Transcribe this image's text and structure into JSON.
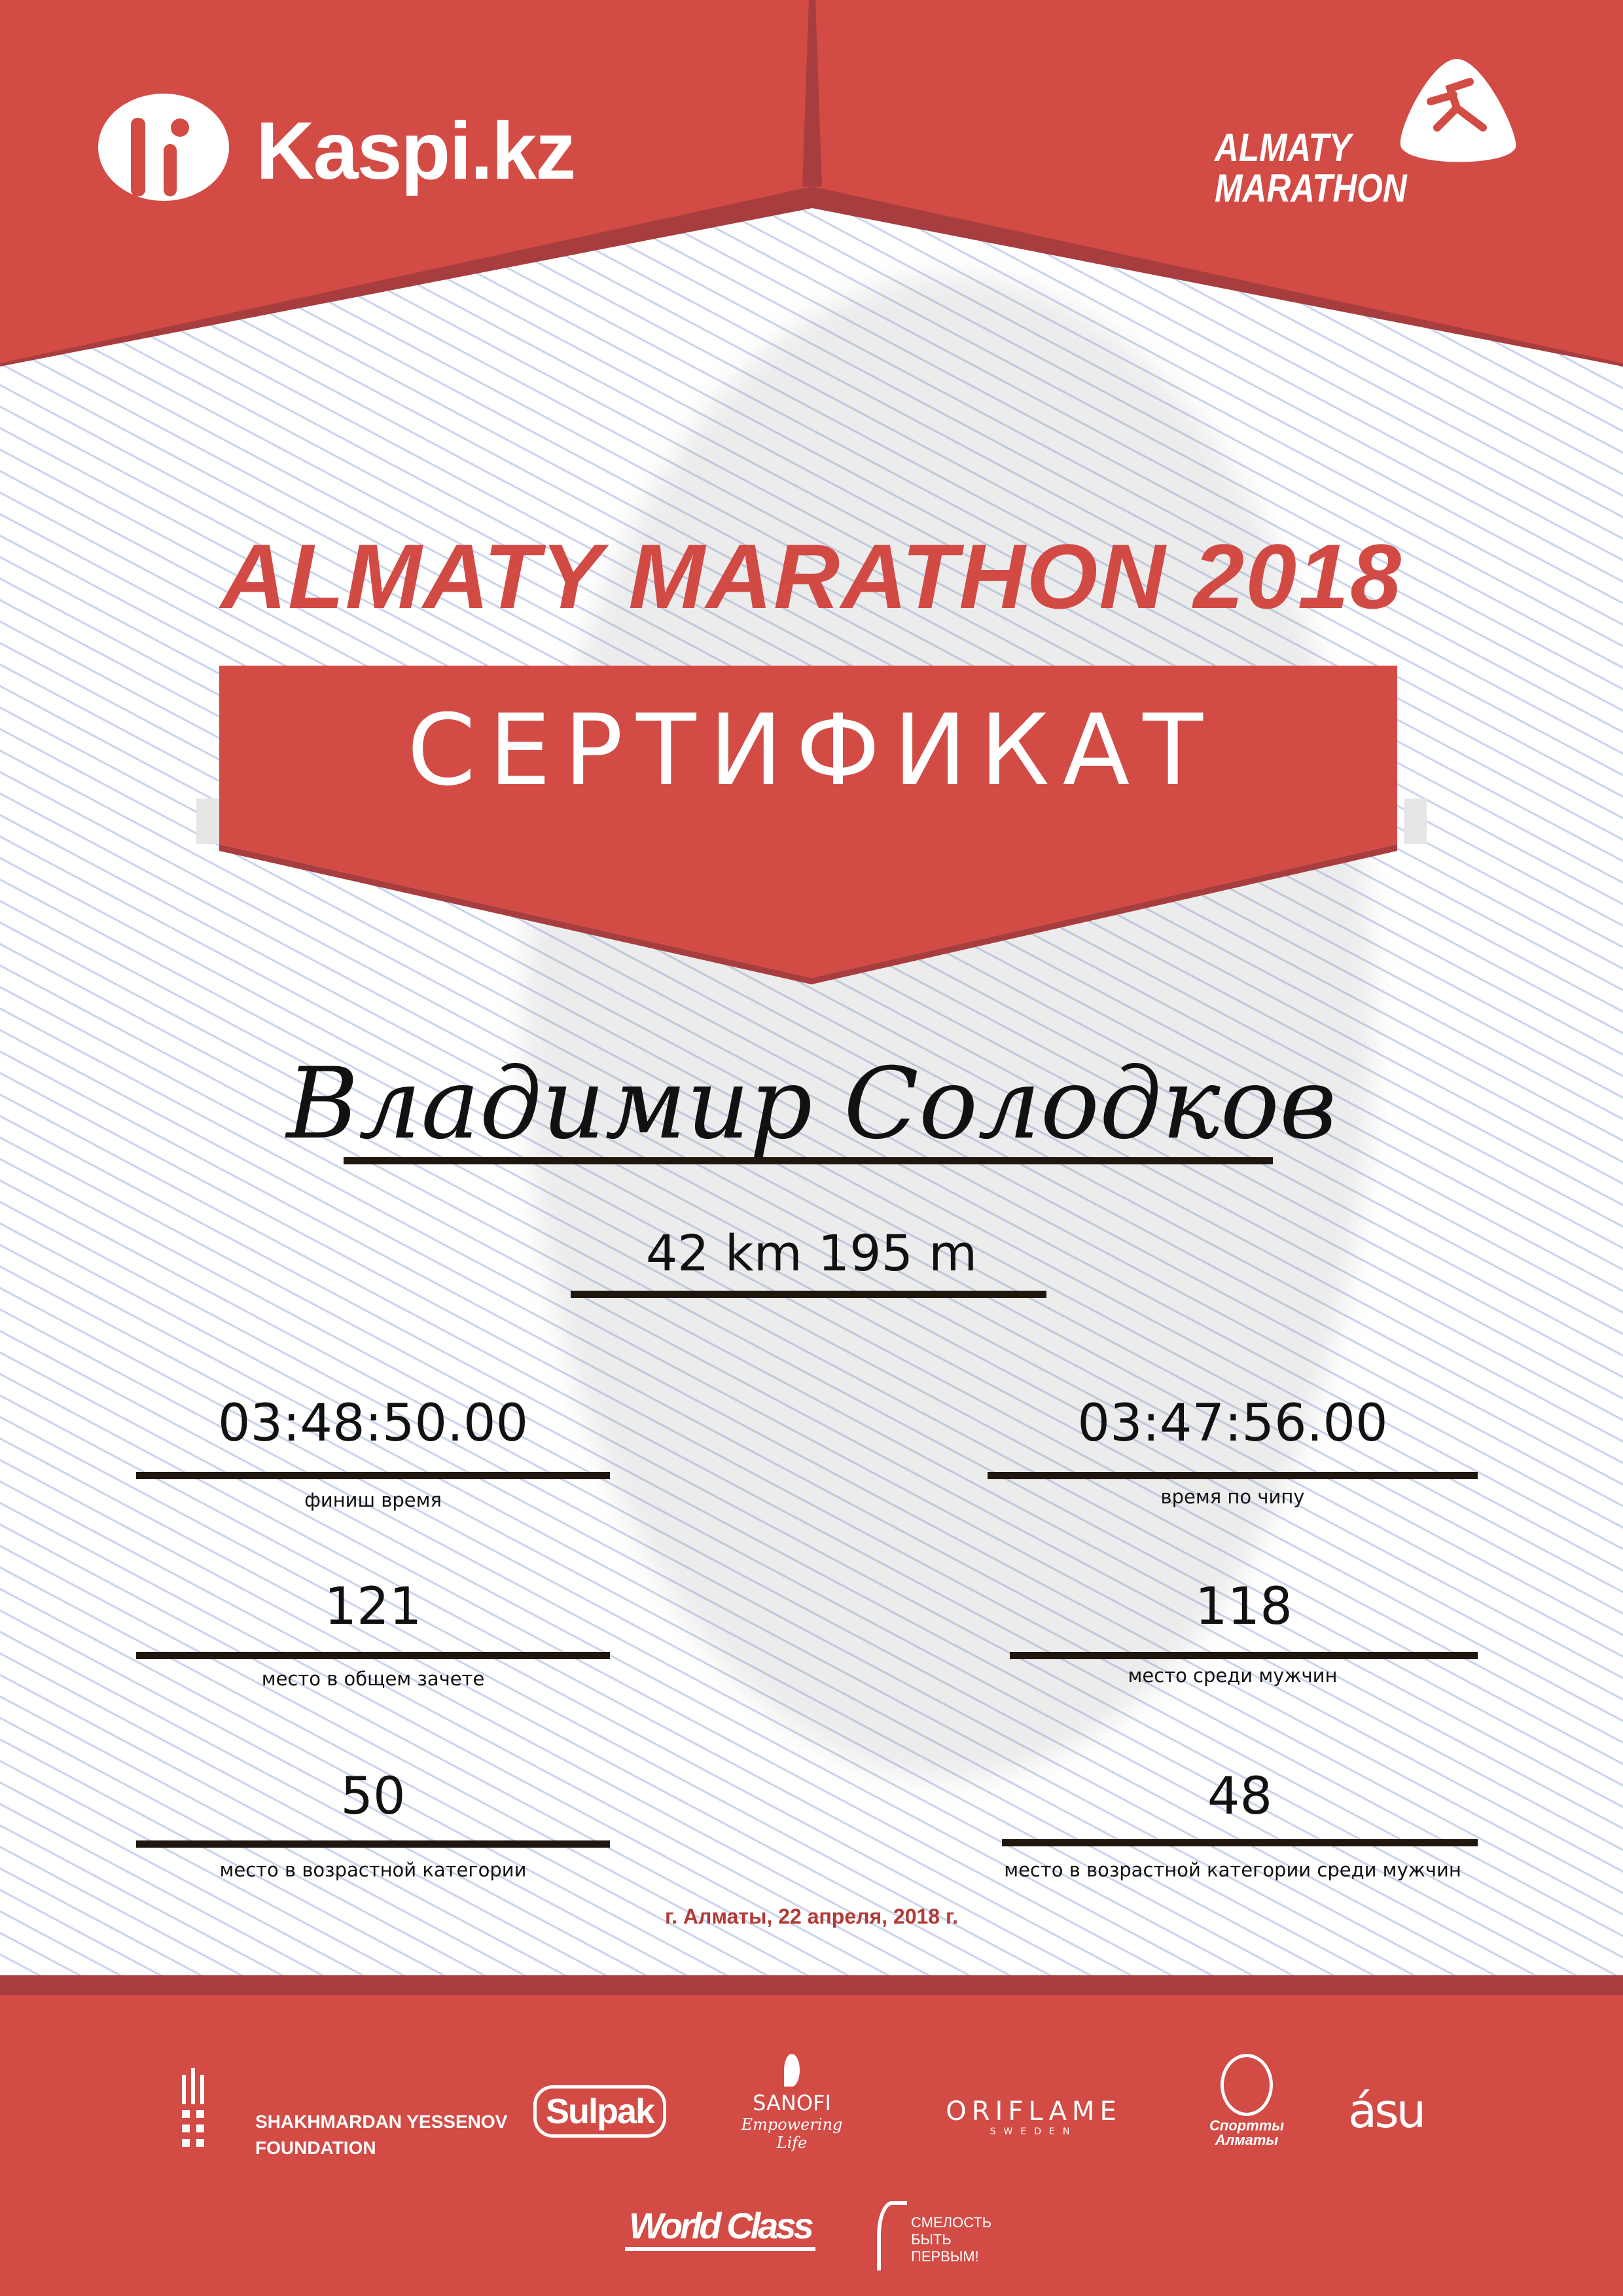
{
  "colors": {
    "brand_red": "#d34b45",
    "dark_red": "#a73d3e",
    "text": "#111111",
    "date_red": "#b23a36"
  },
  "header": {
    "left_logo": "Kaspi.kz",
    "left_logo_icon": "kaspi-family-icon",
    "right_logo_line1": "ALMATY",
    "right_logo_line2": "MARATHON",
    "right_logo_icon": "runner-icon"
  },
  "title": "ALMATY MARATHON 2018",
  "banner": "СЕРТИФИКАТ",
  "participant": {
    "name": "Владимир Солодков",
    "distance": "42 km 195 m"
  },
  "results": [
    {
      "value": "03:48:50.00",
      "label": "финиш время"
    },
    {
      "value": "03:47:56.00",
      "label": "время по чипу"
    },
    {
      "value": "121",
      "label": "место в общем зачете"
    },
    {
      "value": "118",
      "label": "место среди мужчин"
    },
    {
      "value": "50",
      "label": "место в возрастной категории"
    },
    {
      "value": "48",
      "label": "место в возрастной категории среди мужчин"
    }
  ],
  "date": "г. Алматы, 22 апреля, 2018 г.",
  "sponsors": {
    "yessenov_1": "SHAKHMARDAN YESSENOV",
    "yessenov_2": "FOUNDATION",
    "sulpak": "Sulpak",
    "sanofi": "SANOFI",
    "sanofi_tag": "Empowering Life",
    "oriflame": "ORIFLAME",
    "oriflame_sub": "SWEDEN",
    "sport_almaty_1": "Спортты",
    "sport_almaty_2": "Алматы",
    "asu": "ásu",
    "worldclass": "World Class",
    "fund_1": "СМЕЛОСТЬ",
    "fund_2": "БЫТЬ",
    "fund_3": "ПЕРВЫМ!"
  }
}
